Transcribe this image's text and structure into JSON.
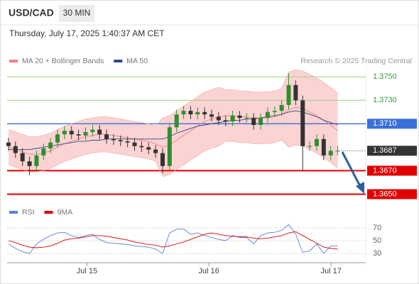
{
  "chart_data": [
    {
      "type": "candlestick",
      "title": "USD/CAD",
      "interval": "30 MIN",
      "subtitle": "Thursday, July 17, 2025 1:40:37 AM CET",
      "credit": "Research © 2025 Trading Central",
      "up_color": "#2f8f2f",
      "down_color": "#333333",
      "xlim": [
        -0.2,
        51
      ],
      "xticks": [
        {
          "value": 11.2,
          "label": "Jul 15"
        },
        {
          "value": 28.6,
          "label": "Jul 16"
        },
        {
          "value": 46.05,
          "label": "Jul 17"
        }
      ],
      "ylim": [
        1.364,
        1.3758
      ],
      "open": [
        1.3694,
        1.3691,
        1.3685,
        1.3678,
        1.3674,
        1.3683,
        1.3689,
        1.3694,
        1.3701,
        1.3704,
        1.3701,
        1.37,
        1.3703,
        1.3705,
        1.3701,
        1.3697,
        1.3696,
        1.3695,
        1.3694,
        1.3691,
        1.369,
        1.3688,
        1.3685,
        1.3674,
        1.3707,
        1.3718,
        1.3721,
        1.3718,
        1.372,
        1.3718,
        1.3716,
        1.3713,
        1.3712,
        1.3717,
        1.3715,
        1.3715,
        1.3709,
        1.3715,
        1.372,
        1.3721,
        1.3726,
        1.3743,
        1.373,
        1.3691,
        1.3691,
        1.3697,
        1.3683,
        1.3687
      ],
      "high": [
        1.3698,
        1.3695,
        1.3689,
        1.3682,
        1.3687,
        1.3693,
        1.3698,
        1.3705,
        1.3708,
        1.3708,
        1.3705,
        1.3707,
        1.3709,
        1.3709,
        1.3705,
        1.3701,
        1.37,
        1.3699,
        1.3698,
        1.3695,
        1.3694,
        1.3692,
        1.3689,
        1.3711,
        1.3722,
        1.3725,
        1.3725,
        1.3724,
        1.3724,
        1.3722,
        1.372,
        1.3717,
        1.3721,
        1.3721,
        1.3719,
        1.3719,
        1.3719,
        1.3724,
        1.3725,
        1.373,
        1.3753,
        1.3747,
        1.3734,
        1.3695,
        1.3701,
        1.3701,
        1.3691,
        1.3691
      ],
      "low": [
        1.3687,
        1.3681,
        1.3674,
        1.3666,
        1.367,
        1.3679,
        1.3685,
        1.369,
        1.3697,
        1.3697,
        1.3696,
        1.3696,
        1.3699,
        1.3697,
        1.3693,
        1.3692,
        1.3691,
        1.369,
        1.3687,
        1.3686,
        1.3684,
        1.3681,
        1.3668,
        1.367,
        1.3703,
        1.3714,
        1.3714,
        1.3714,
        1.3714,
        1.3712,
        1.3709,
        1.3708,
        1.3708,
        1.3711,
        1.3711,
        1.3705,
        1.3705,
        1.3711,
        1.3716,
        1.3717,
        1.3722,
        1.3726,
        1.367,
        1.3687,
        1.3687,
        1.3679,
        1.3679,
        1.3683
      ],
      "close": [
        1.3691,
        1.3685,
        1.3678,
        1.3674,
        1.3683,
        1.3689,
        1.3694,
        1.3701,
        1.3704,
        1.3701,
        1.37,
        1.3703,
        1.3705,
        1.3701,
        1.3697,
        1.3696,
        1.3695,
        1.3694,
        1.3691,
        1.369,
        1.3688,
        1.3685,
        1.3674,
        1.3707,
        1.3718,
        1.3721,
        1.3718,
        1.372,
        1.3718,
        1.3716,
        1.3713,
        1.3712,
        1.3717,
        1.3715,
        1.3715,
        1.3709,
        1.3715,
        1.372,
        1.3721,
        1.3726,
        1.3743,
        1.373,
        1.3691,
        1.3691,
        1.3697,
        1.3683,
        1.3687,
        1.3687
      ],
      "series": [
        {
          "name": "MA 20 + Bollinger Bands",
          "color": "#f08080",
          "band_color": "#fbd3d3",
          "values": [
            1.369,
            1.3688,
            1.3686,
            1.3684,
            1.3684,
            1.3685,
            1.3687,
            1.369,
            1.3693,
            1.3695,
            1.3697,
            1.3699,
            1.37,
            1.3701,
            1.3701,
            1.37,
            1.3699,
            1.3698,
            1.3697,
            1.3696,
            1.3695,
            1.3693,
            1.369,
            1.3692,
            1.3696,
            1.37,
            1.3704,
            1.3708,
            1.3712,
            1.3714,
            1.3716,
            1.3717,
            1.3717,
            1.3716,
            1.3716,
            1.3715,
            1.3715,
            1.3715,
            1.3716,
            1.3718,
            1.3722,
            1.3724,
            1.3723,
            1.372,
            1.3717,
            1.3713,
            1.3709,
            1.3704
          ],
          "upper": [
            1.3705,
            1.3703,
            1.3701,
            1.3699,
            1.3699,
            1.37,
            1.3702,
            1.3705,
            1.3708,
            1.371,
            1.3712,
            1.3714,
            1.3715,
            1.3716,
            1.3716,
            1.3715,
            1.3714,
            1.3713,
            1.3712,
            1.3711,
            1.371,
            1.3708,
            1.3715,
            1.3717,
            1.3721,
            1.3725,
            1.3729,
            1.3733,
            1.3737,
            1.3739,
            1.3741,
            1.3739,
            1.3739,
            1.3738,
            1.3738,
            1.3737,
            1.3737,
            1.3737,
            1.3738,
            1.374,
            1.3754,
            1.3756,
            1.3755,
            1.3752,
            1.3749,
            1.3745,
            1.3741,
            1.3736
          ],
          "lower": [
            1.3675,
            1.3673,
            1.3671,
            1.3669,
            1.3669,
            1.367,
            1.3672,
            1.3675,
            1.3678,
            1.368,
            1.3682,
            1.3684,
            1.3685,
            1.3686,
            1.3686,
            1.3685,
            1.3684,
            1.3683,
            1.3682,
            1.3681,
            1.368,
            1.3678,
            1.3665,
            1.3667,
            1.3671,
            1.3675,
            1.3679,
            1.3683,
            1.3687,
            1.3689,
            1.3691,
            1.3695,
            1.3695,
            1.3694,
            1.3694,
            1.3693,
            1.3693,
            1.3693,
            1.3694,
            1.3696,
            1.369,
            1.3692,
            1.3691,
            1.3688,
            1.3685,
            1.3681,
            1.3677,
            1.3672
          ]
        },
        {
          "name": "MA 50",
          "color": "#2c4a8c",
          "values": [
            1.3688,
            1.3688,
            1.3688,
            1.3688,
            1.3689,
            1.369,
            1.3691,
            1.3692,
            1.3693,
            1.3694,
            1.3695,
            1.3695,
            1.3696,
            1.3696,
            1.3697,
            1.3697,
            1.3697,
            1.3697,
            1.3697,
            1.3697,
            1.3697,
            1.3697,
            1.3697,
            1.3699,
            1.3702,
            1.3704,
            1.3706,
            1.3708,
            1.3709,
            1.371,
            1.3711,
            1.3712,
            1.3713,
            1.3713,
            1.3714,
            1.3714,
            1.3715,
            1.3716,
            1.3717,
            1.3718,
            1.372,
            1.3721,
            1.372,
            1.3718,
            1.3716,
            1.3713,
            1.3711,
            1.3709
          ]
        }
      ],
      "levels": [
        {
          "value": 1.375,
          "label": "1.3750",
          "color": "#9ccf7c",
          "text_color": "#3a9a3a",
          "boxed": false
        },
        {
          "value": 1.373,
          "label": "1.3730",
          "color": "#9ccf7c",
          "text_color": "#3a9a3a",
          "boxed": false
        },
        {
          "value": 1.371,
          "label": "1.3710",
          "color": "#3a6fd8",
          "text_color": "#ffffff",
          "boxed": true
        },
        {
          "value": 1.3687,
          "label": "1.3687",
          "color": "#333333",
          "text_color": "#ffffff",
          "boxed": true,
          "current": true
        },
        {
          "value": 1.367,
          "label": "1.3670",
          "color": "#e00000",
          "text_color": "#ffffff",
          "boxed": true
        },
        {
          "value": 1.365,
          "label": "1.3650",
          "color": "#e00000",
          "text_color": "#ffffff",
          "boxed": true
        }
      ]
    },
    {
      "type": "line",
      "xlim": [
        -0.2,
        51
      ],
      "ylim": [
        18,
        82
      ],
      "yticks": [
        30,
        50,
        70
      ],
      "series": [
        {
          "name": "RSI",
          "color": "#5b7fdb",
          "values": [
            45,
            38,
            33,
            30,
            45,
            52,
            58,
            62,
            63,
            58,
            55,
            58,
            60,
            52,
            47,
            46,
            45,
            44,
            42,
            41,
            40,
            37,
            30,
            62,
            68,
            68,
            60,
            62,
            58,
            55,
            52,
            50,
            58,
            55,
            55,
            45,
            58,
            62,
            63,
            66,
            75,
            60,
            32,
            34,
            45,
            30,
            42,
            42
          ]
        },
        {
          "name": "9MA",
          "color": "#e00000",
          "values": [
            50,
            47,
            43,
            40,
            39,
            40,
            42,
            46,
            51,
            53,
            54,
            56,
            58,
            58,
            57,
            55,
            53,
            51,
            48,
            46,
            44,
            43,
            40,
            42,
            45,
            48,
            52,
            56,
            60,
            62,
            60,
            58,
            57,
            56,
            56,
            54,
            53,
            54,
            56,
            58,
            62,
            64,
            58,
            52,
            46,
            40,
            38,
            37
          ]
        }
      ]
    }
  ]
}
